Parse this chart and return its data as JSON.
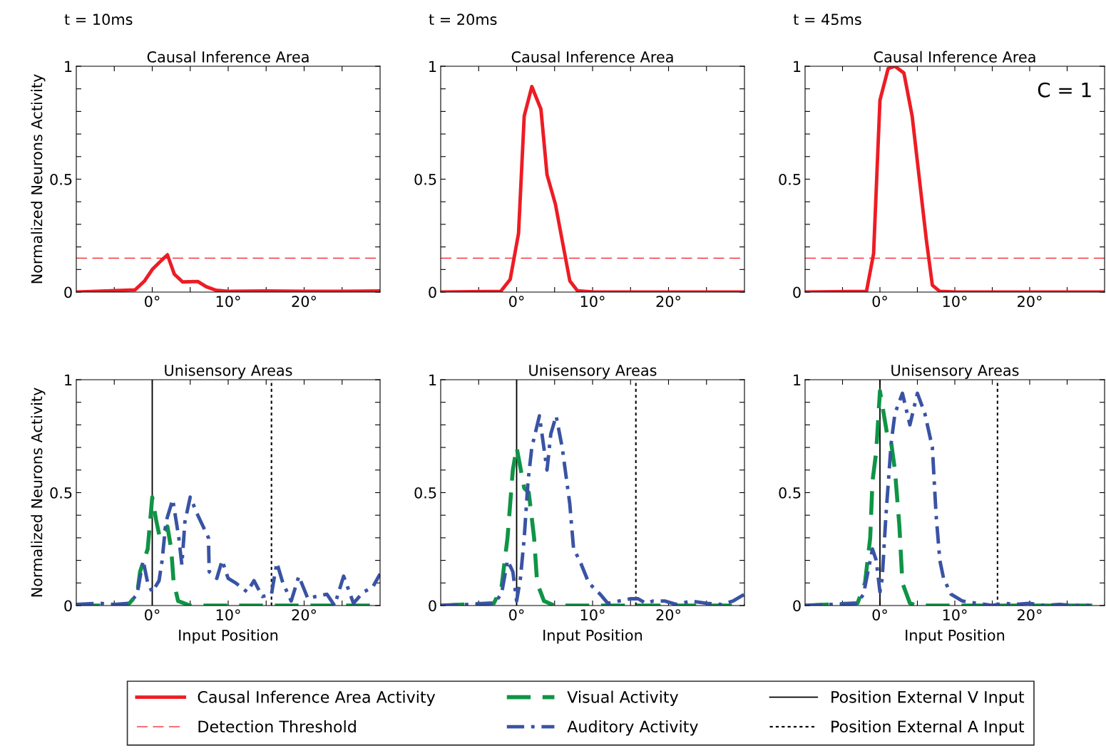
{
  "chart_data": [
    {
      "type": "line",
      "subtitle": "t = 10ms",
      "title": "Causal Inference Area",
      "ylabel": "Normalized Neurons Activity",
      "xlim": [
        -10,
        30
      ],
      "ylim": [
        0,
        1
      ],
      "xticks": [
        {
          "value": -5,
          "label": null
        },
        {
          "value": 0,
          "label": "0°"
        },
        {
          "value": 5,
          "label": null
        },
        {
          "value": 10,
          "label": "10°"
        },
        {
          "value": 15,
          "label": null
        },
        {
          "value": 20,
          "label": "20°"
        },
        {
          "value": 25,
          "label": null
        }
      ],
      "yticks": [
        0,
        {
          "value": 0.1,
          "label": null
        },
        {
          "value": 0.2,
          "label": null
        },
        {
          "value": 0.3,
          "label": null
        },
        {
          "value": 0.4,
          "label": null
        },
        0.5,
        {
          "value": 0.6,
          "label": null
        },
        {
          "value": 0.7,
          "label": null
        },
        {
          "value": 0.8,
          "label": null
        },
        {
          "value": 0.9,
          "label": null
        },
        1
      ],
      "grid": false,
      "legend": "bottom",
      "series": [
        {
          "name": "Causal Inference Area Activity",
          "color": "#ed1c24",
          "line_style": "solid",
          "x": [
            -10,
            -2.25,
            -1,
            0,
            1.2,
            2,
            2.9,
            4,
            6,
            7.1,
            8.4,
            10.25,
            15,
            20,
            25,
            30
          ],
          "values": [
            0,
            0.01,
            0.05,
            0.1,
            0.14,
            0.165,
            0.08,
            0.045,
            0.047,
            0.024,
            0.008,
            0.003,
            0.005,
            0.003,
            0.003,
            0.005
          ]
        }
      ],
      "ref_lines": [
        {
          "axis": "y",
          "value": 0.15,
          "label": "Detection Threshold",
          "color": "#ed1c24",
          "line_style": "dashed"
        }
      ]
    },
    {
      "type": "line",
      "subtitle": "t = 20ms",
      "title": "Causal Inference Area",
      "xlim": [
        -10,
        30
      ],
      "ylim": [
        0,
        1
      ],
      "xticks": [
        {
          "value": -5,
          "label": null
        },
        {
          "value": 0,
          "label": "0°"
        },
        {
          "value": 5,
          "label": null
        },
        {
          "value": 10,
          "label": "10°"
        },
        {
          "value": 15,
          "label": null
        },
        {
          "value": 20,
          "label": "20°"
        },
        {
          "value": 25,
          "label": null
        }
      ],
      "yticks": [
        0,
        {
          "value": 0.1,
          "label": null
        },
        {
          "value": 0.2,
          "label": null
        },
        {
          "value": 0.3,
          "label": null
        },
        {
          "value": 0.4,
          "label": null
        },
        0.5,
        {
          "value": 0.6,
          "label": null
        },
        {
          "value": 0.7,
          "label": null
        },
        {
          "value": 0.8,
          "label": null
        },
        {
          "value": 0.9,
          "label": null
        },
        1
      ],
      "grid": false,
      "legend": "bottom",
      "series": [
        {
          "name": "Causal Inference Area Activity",
          "color": "#ed1c24",
          "line_style": "solid",
          "x": [
            -10,
            -2.1,
            -0.85,
            0.25,
            1,
            2,
            3.2,
            4,
            5.1,
            7,
            8,
            10.25,
            30
          ],
          "values": [
            0,
            0.003,
            0.056,
            0.26,
            0.78,
            0.91,
            0.81,
            0.52,
            0.39,
            0.05,
            0.006,
            0,
            0
          ]
        }
      ],
      "ref_lines": [
        {
          "axis": "y",
          "value": 0.15,
          "color": "#ed1c24",
          "line_style": "dashed"
        }
      ]
    },
    {
      "type": "line",
      "subtitle": "t = 45ms",
      "title": "Causal Inference Area",
      "annotations": [
        "C = 1"
      ],
      "xlim": [
        -10,
        30
      ],
      "ylim": [
        0,
        1
      ],
      "xticks": [
        {
          "value": -5,
          "label": null
        },
        {
          "value": 0,
          "label": "0°"
        },
        {
          "value": 5,
          "label": null
        },
        {
          "value": 10,
          "label": "10°"
        },
        {
          "value": 15,
          "label": null
        },
        {
          "value": 20,
          "label": "20°"
        },
        {
          "value": 25,
          "label": null
        }
      ],
      "yticks": [
        0,
        {
          "value": 0.1,
          "label": null
        },
        {
          "value": 0.2,
          "label": null
        },
        {
          "value": 0.3,
          "label": null
        },
        {
          "value": 0.4,
          "label": null
        },
        0.5,
        {
          "value": 0.6,
          "label": null
        },
        {
          "value": 0.7,
          "label": null
        },
        {
          "value": 0.8,
          "label": null
        },
        {
          "value": 0.9,
          "label": null
        },
        1
      ],
      "grid": false,
      "legend": "bottom",
      "series": [
        {
          "name": "Causal Inference Area Activity",
          "color": "#ed1c24",
          "line_style": "solid",
          "x": [
            -10,
            -1.8,
            -0.85,
            0,
            1.1,
            2,
            3.2,
            4.3,
            5.2,
            6.2,
            7,
            8,
            10.25,
            30
          ],
          "values": [
            0,
            0.003,
            0.17,
            0.85,
            0.99,
            1,
            0.97,
            0.78,
            0.52,
            0.23,
            0.03,
            0.003,
            0,
            0
          ]
        }
      ],
      "ref_lines": [
        {
          "axis": "y",
          "value": 0.15,
          "color": "#ed1c24",
          "line_style": "dashed"
        }
      ]
    },
    {
      "type": "line",
      "title": "Unisensory Areas",
      "xlabel": "Input Position",
      "ylabel": "Normalized Neurons Activity",
      "xlim": [
        -10,
        30
      ],
      "ylim": [
        0,
        1
      ],
      "xticks": [
        {
          "value": -5,
          "label": null
        },
        {
          "value": 0,
          "label": "0°"
        },
        {
          "value": 5,
          "label": null
        },
        {
          "value": 10,
          "label": "10°"
        },
        {
          "value": 15,
          "label": null
        },
        {
          "value": 20,
          "label": "20°"
        },
        {
          "value": 25,
          "label": null
        }
      ],
      "yticks": [
        0,
        {
          "value": 0.1,
          "label": null
        },
        {
          "value": 0.2,
          "label": null
        },
        {
          "value": 0.3,
          "label": null
        },
        {
          "value": 0.4,
          "label": null
        },
        0.5,
        {
          "value": 0.6,
          "label": null
        },
        {
          "value": 0.7,
          "label": null
        },
        {
          "value": 0.8,
          "label": null
        },
        {
          "value": 0.9,
          "label": null
        },
        1
      ],
      "grid": false,
      "legend": "bottom",
      "series": [
        {
          "name": "Visual Activity",
          "color": "#0f9446",
          "line_style": "dashed",
          "x": [
            -10,
            -4,
            -3,
            -2,
            -1.6,
            -0.6,
            0,
            0.5,
            1,
            2,
            2.5,
            2.8,
            3.4,
            5,
            30
          ],
          "values": [
            0,
            0,
            0.01,
            0.05,
            0.15,
            0.25,
            0.48,
            0.38,
            0.3,
            0.35,
            0.25,
            0.11,
            0.02,
            0,
            0
          ]
        },
        {
          "name": "Auditory Activity",
          "color": "#3953a4",
          "line_style": "dashdot",
          "x": [
            -10,
            -7,
            -5,
            -3,
            -2,
            -1.2,
            -0.6,
            0,
            0.9,
            1.3,
            1.8,
            2.7,
            3.5,
            3.9,
            4.3,
            5,
            6,
            7.4,
            7.5,
            8.5,
            9.2,
            10,
            11,
            12.5,
            13.4,
            14.5,
            15.7,
            16.4,
            17.2,
            18.3,
            19.3,
            20.5,
            21.5,
            23,
            24,
            25.2,
            26.5,
            27.8,
            29,
            30
          ],
          "values": [
            0.005,
            0.01,
            0.005,
            0.01,
            0.05,
            0.2,
            0.1,
            0.06,
            0.11,
            0.2,
            0.37,
            0.47,
            0.3,
            0.18,
            0.37,
            0.48,
            0.4,
            0.3,
            0.15,
            0.12,
            0.2,
            0.12,
            0.1,
            0.06,
            0.11,
            0.04,
            0.05,
            0.19,
            0.1,
            0.02,
            0.13,
            0.03,
            0.04,
            0.05,
            0,
            0.13,
            0.01,
            0.06,
            0.08,
            0.14
          ]
        }
      ],
      "ref_lines": [
        {
          "axis": "x",
          "value": 0,
          "label": "Position External V Input",
          "color": "#000000",
          "line_style": "solid"
        },
        {
          "axis": "x",
          "value": 15.7,
          "label": "Position External A Input",
          "color": "#000000",
          "line_style": "dotted"
        }
      ]
    },
    {
      "type": "line",
      "title": "Unisensory Areas",
      "xlabel": "Input Position",
      "xlim": [
        -10,
        30
      ],
      "ylim": [
        0,
        1
      ],
      "xticks": [
        {
          "value": -5,
          "label": null
        },
        {
          "value": 0,
          "label": "0°"
        },
        {
          "value": 5,
          "label": null
        },
        {
          "value": 10,
          "label": "10°"
        },
        {
          "value": 15,
          "label": null
        },
        {
          "value": 20,
          "label": "20°"
        },
        {
          "value": 25,
          "label": null
        }
      ],
      "yticks": [
        0,
        {
          "value": 0.1,
          "label": null
        },
        {
          "value": 0.2,
          "label": null
        },
        {
          "value": 0.3,
          "label": null
        },
        {
          "value": 0.4,
          "label": null
        },
        0.5,
        {
          "value": 0.6,
          "label": null
        },
        {
          "value": 0.7,
          "label": null
        },
        {
          "value": 0.8,
          "label": null
        },
        {
          "value": 0.9,
          "label": null
        },
        1
      ],
      "grid": false,
      "legend": "bottom",
      "series": [
        {
          "name": "Visual Activity",
          "color": "#0f9446",
          "line_style": "dashed",
          "x": [
            -10,
            -3,
            -2,
            -1.2,
            -0.5,
            0,
            1,
            1.6,
            2.3,
            2.7,
            3.6,
            5,
            30
          ],
          "values": [
            0,
            0.01,
            0.08,
            0.3,
            0.6,
            0.7,
            0.52,
            0.5,
            0.3,
            0.1,
            0.02,
            0,
            0
          ]
        },
        {
          "name": "Auditory Activity",
          "color": "#3953a4",
          "line_style": "dashdot",
          "x": [
            -10,
            -3,
            -2,
            -1.2,
            -0.5,
            0,
            0.5,
            1,
            1.5,
            2,
            3,
            4,
            4.5,
            5.2,
            6,
            7,
            7.5,
            8.3,
            9.5,
            11,
            12,
            13.5,
            15,
            16,
            17,
            18,
            19.5,
            21,
            23,
            25,
            27,
            28.5,
            30
          ],
          "values": [
            0,
            0.01,
            0.05,
            0.2,
            0.15,
            0.02,
            0.12,
            0.3,
            0.55,
            0.7,
            0.84,
            0.6,
            0.76,
            0.84,
            0.7,
            0.45,
            0.25,
            0.2,
            0.1,
            0.05,
            0.01,
            0.02,
            0.03,
            0.03,
            0.01,
            0.02,
            0.02,
            0.005,
            0.02,
            0.01,
            0.005,
            0.02,
            0.05
          ]
        }
      ],
      "ref_lines": [
        {
          "axis": "x",
          "value": 0,
          "color": "#000000",
          "line_style": "solid"
        },
        {
          "axis": "x",
          "value": 15.7,
          "color": "#000000",
          "line_style": "dotted"
        }
      ]
    },
    {
      "type": "line",
      "title": "Unisensory Areas",
      "xlabel": "Input Position",
      "xlim": [
        -10,
        30
      ],
      "ylim": [
        0,
        1
      ],
      "xticks": [
        {
          "value": -5,
          "label": null
        },
        {
          "value": 0,
          "label": "0°"
        },
        {
          "value": 5,
          "label": null
        },
        {
          "value": 10,
          "label": "10°"
        },
        {
          "value": 15,
          "label": null
        },
        {
          "value": 20,
          "label": "20°"
        },
        {
          "value": 25,
          "label": null
        }
      ],
      "yticks": [
        0,
        {
          "value": 0.1,
          "label": null
        },
        {
          "value": 0.2,
          "label": null
        },
        {
          "value": 0.3,
          "label": null
        },
        {
          "value": 0.4,
          "label": null
        },
        0.5,
        {
          "value": 0.6,
          "label": null
        },
        {
          "value": 0.7,
          "label": null
        },
        {
          "value": 0.8,
          "label": null
        },
        {
          "value": 0.9,
          "label": null
        },
        1
      ],
      "grid": false,
      "legend": "bottom",
      "series": [
        {
          "name": "Visual Activity",
          "color": "#0f9446",
          "line_style": "dashed",
          "x": [
            -10,
            -3,
            -2,
            -1.3,
            -1,
            -0.5,
            0,
            1,
            1.5,
            2,
            2.6,
            3,
            4,
            5,
            30
          ],
          "values": [
            0,
            0.01,
            0.1,
            0.3,
            0.55,
            0.68,
            0.95,
            0.75,
            0.72,
            0.6,
            0.35,
            0.1,
            0.01,
            0,
            0
          ]
        },
        {
          "name": "Auditory Activity",
          "color": "#3953a4",
          "line_style": "dashdot",
          "x": [
            -10,
            -3,
            -2.2,
            -1,
            -0.5,
            0,
            0.3,
            0.8,
            1.5,
            2,
            3,
            4,
            5,
            6,
            7,
            7.5,
            8,
            8.5,
            9.5,
            11,
            13,
            15,
            16.5,
            18,
            20,
            22,
            24,
            26,
            28
          ],
          "values": [
            0,
            0.01,
            0.05,
            0.25,
            0.2,
            0.06,
            0.12,
            0.4,
            0.72,
            0.85,
            0.94,
            0.8,
            0.94,
            0.85,
            0.7,
            0.4,
            0.2,
            0.12,
            0.05,
            0.02,
            0.01,
            0,
            0.01,
            0.005,
            0.01,
            0,
            0.005,
            0,
            0
          ]
        }
      ],
      "ref_lines": [
        {
          "axis": "x",
          "value": 0,
          "color": "#000000",
          "line_style": "solid"
        },
        {
          "axis": "x",
          "value": 15.7,
          "color": "#000000",
          "line_style": "dotted"
        }
      ]
    }
  ]
}
